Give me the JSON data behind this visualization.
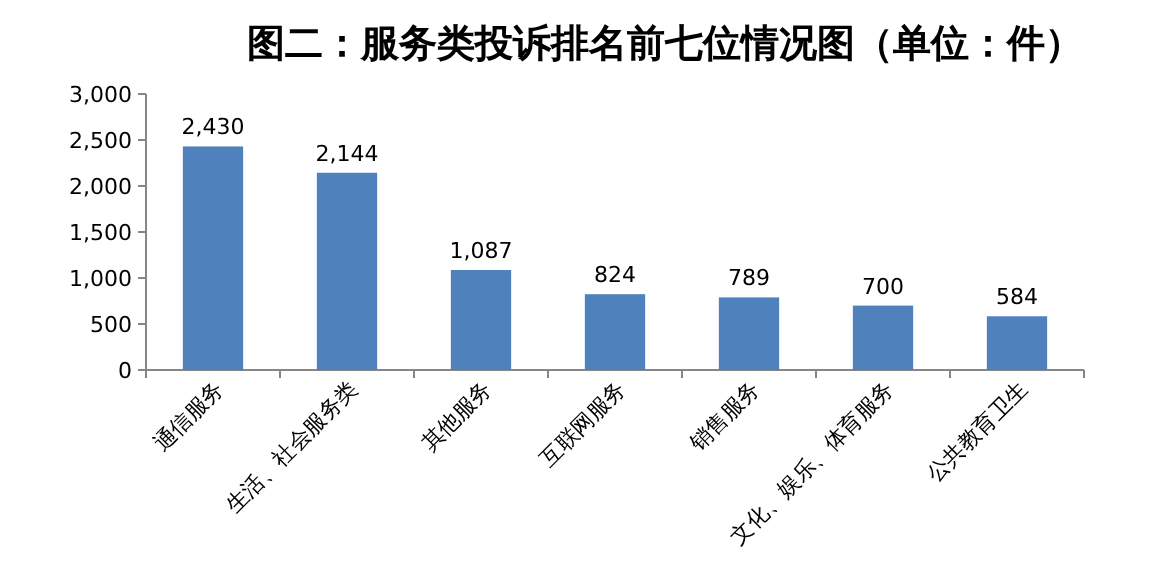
{
  "chart_data": {
    "type": "bar",
    "title": "图二：服务类投诉排名前七位情况图（单位：件）",
    "categories": [
      "通信服务",
      "生活、社会服务类",
      "其他服务",
      "互联网服务",
      "销售服务",
      "文化、娱乐、体育服务",
      "公共教育卫生"
    ],
    "values": [
      2430,
      2144,
      1087,
      824,
      789,
      700,
      584
    ],
    "color": "#4f81bd",
    "ylim": [
      0,
      3000
    ],
    "yticks": [
      {
        "value": 0,
        "label": "0"
      },
      {
        "value": 500,
        "label": "500"
      },
      {
        "value": 1000,
        "label": "1,000"
      },
      {
        "value": 1500,
        "label": "1,500"
      },
      {
        "value": 2000,
        "label": "2,000"
      },
      {
        "value": 2500,
        "label": "2,500"
      },
      {
        "value": 3000,
        "label": "3,000"
      }
    ],
    "value_labels": [
      "2,430",
      "2,144",
      "1,087",
      "824",
      "789",
      "700",
      "584"
    ]
  }
}
